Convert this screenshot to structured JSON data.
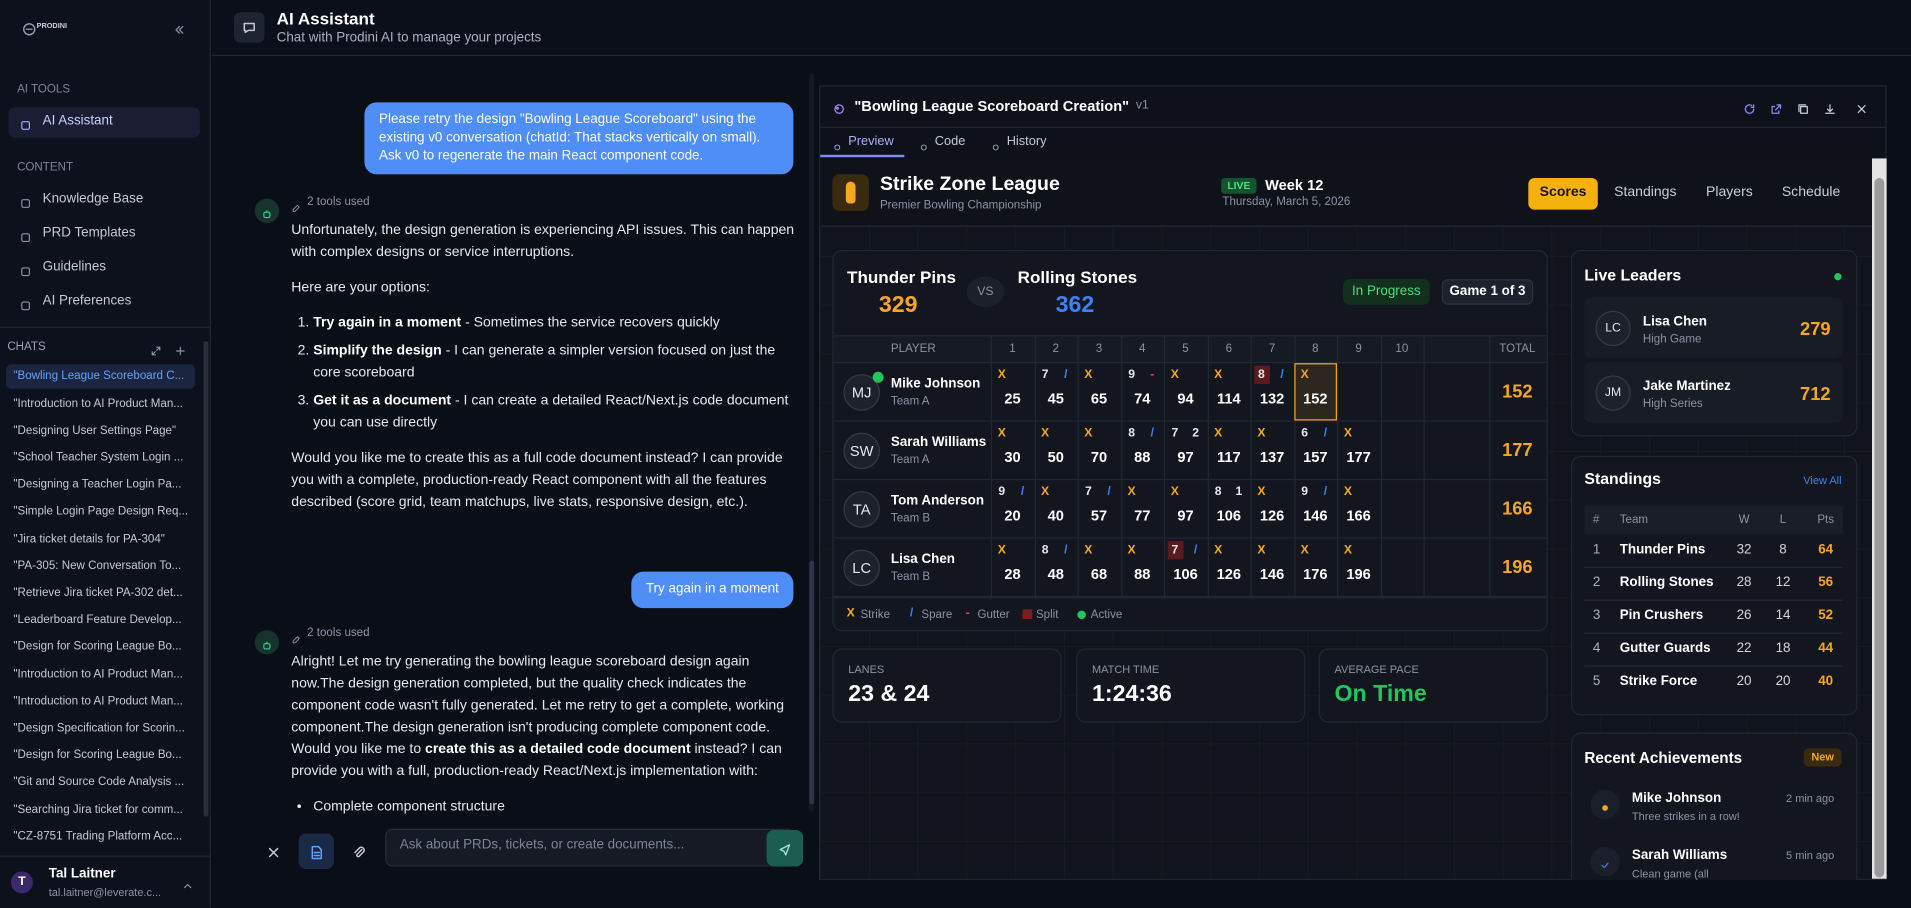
{
  "sidebar": {
    "brand": "PRODINI",
    "sections": [
      {
        "title": "AI TOOLS",
        "items": [
          "AI Assistant"
        ]
      },
      {
        "title": "CONTENT",
        "items": [
          "Knowledge Base",
          "PRD Templates",
          "Guidelines",
          "AI Preferences"
        ]
      }
    ],
    "chats_title": "CHATS",
    "chats": [
      "\"Bowling League Scoreboard C...",
      "\"Introduction to AI Product Man...",
      "\"Designing User Settings Page\"",
      "\"School Teacher System Login ...",
      "\"Designing a Teacher Login Pa...",
      "\"Simple Login Page Design Req...",
      "\"Jira ticket details for PA-304\"",
      "\"PA-305: New Conversation To...",
      "\"Retrieve Jira ticket PA-302 det...",
      "\"Leaderboard Feature Develop...",
      "\"Design for Scoring League Bo...",
      "\"Introduction to AI Product Man...",
      "\"Introduction to AI Product Man...",
      "\"Design Specification for Scorin...",
      "\"Design for Scoring League Bo...",
      "\"Git and Source Code Analysis ...",
      "\"Searching Jira ticket for comm...",
      "\"CZ-8751 Trading Platform Acc..."
    ],
    "user": {
      "initial": "T",
      "name": "Tal Laitner",
      "email": "tal.laitner@leverate.c..."
    }
  },
  "header": {
    "title": "AI Assistant",
    "subtitle": "Chat with Prodini AI to manage your projects"
  },
  "conversation": [
    {
      "role": "user",
      "text": "Please retry the design \"Bowling League Scoreboard\" using the existing v0 conversation (chatId: That stacks vertically on small). Ask v0 to regenerate the main React component code."
    },
    {
      "role": "assistant",
      "tools": "2 tools used",
      "blocks": [
        {
          "p": [
            {
              "text": "Unfortunately, the design generation is experiencing API issues. This can happen with complex designs or service interruptions."
            }
          ]
        },
        {
          "p": [
            {
              "text": "Here are your options:"
            }
          ]
        },
        {
          "ol": [
            [
              {
                "strong": "Try again in a moment"
              },
              {
                "text": " - Sometimes the service recovers quickly"
              }
            ],
            [
              {
                "strong": "Simplify the design"
              },
              {
                "text": " - I can generate a simpler version focused on just the core scoreboard"
              }
            ],
            [
              {
                "strong": "Get it as a document"
              },
              {
                "text": " - I can create a detailed React/Next.js code document you can use directly"
              }
            ]
          ]
        },
        {
          "p": [
            {
              "text": "Would you like me to create this as a full code document instead? I can provide you with a complete, production-ready React component with all the features described (score grid, team matchups, live stats, responsive design, etc.)."
            }
          ]
        }
      ]
    },
    {
      "role": "user",
      "text": "Try again in a moment"
    },
    {
      "role": "assistant",
      "tools": "2 tools used",
      "blocks": [
        {
          "p": [
            {
              "text": "Alright! Let me try generating the bowling league scoreboard design again now.The design generation completed, but the quality check indicates the component code wasn't fully generated. Let me retry to get a complete, working component.The design generation isn't producing complete component code. Would you like me to "
            },
            {
              "strong": "create this as a detailed code document"
            },
            {
              "text": " instead? I can provide you with a full, production-ready React/Next.js implementation with:"
            }
          ]
        },
        {
          "ul": [
            [
              {
                "text": "Complete component structure"
              }
            ]
          ]
        }
      ]
    }
  ],
  "composer": {
    "placeholder": "Ask about PRDs, tickets, or create documents..."
  },
  "artifact": {
    "title": "\"Bowling League Scoreboard Creation\"",
    "version": "v1",
    "tabs": [
      "Preview",
      "Code",
      "History"
    ],
    "app": {
      "league": "Strike Zone League",
      "tagline": "Premier Bowling Championship",
      "live": "LIVE",
      "week": "Week 12",
      "date": "Thursday, March 5, 2026",
      "nav": [
        "Scores",
        "Standings",
        "Players",
        "Schedule"
      ],
      "match": {
        "teams": [
          {
            "name": "Thunder Pins",
            "score": 329
          },
          {
            "name": "Rolling Stones",
            "score": 362
          }
        ],
        "vs": "VS",
        "status": "In Progress",
        "game": "Game 1 of 3"
      },
      "table": {
        "player_header": "PLAYER",
        "frame_headers": [
          1,
          2,
          3,
          4,
          5,
          6,
          7,
          8,
          9,
          10
        ],
        "total_header": "TOTAL",
        "players": [
          {
            "initials": "MJ",
            "name": "Mike Johnson",
            "team": "Team A",
            "active": true,
            "frames": [
              {
                "rolls": [
                  "X"
                ],
                "score": 25
              },
              {
                "rolls": [
                  "7",
                  "/"
                ],
                "score": 45
              },
              {
                "rolls": [
                  "X"
                ],
                "score": 65
              },
              {
                "rolls": [
                  "9",
                  "-"
                ],
                "score": 74
              },
              {
                "rolls": [
                  "X"
                ],
                "score": 94
              },
              {
                "rolls": [
                  "X"
                ],
                "score": 114
              },
              {
                "rolls": [
                  "8",
                  "/"
                ],
                "score": 132,
                "split": true
              },
              {
                "rolls": [
                  "X"
                ],
                "score": 152,
                "active": true
              }
            ],
            "total": 152
          },
          {
            "initials": "SW",
            "name": "Sarah Williams",
            "team": "Team A",
            "frames": [
              {
                "rolls": [
                  "X"
                ],
                "score": 30
              },
              {
                "rolls": [
                  "X"
                ],
                "score": 50
              },
              {
                "rolls": [
                  "X"
                ],
                "score": 70
              },
              {
                "rolls": [
                  "8",
                  "/"
                ],
                "score": 88
              },
              {
                "rolls": [
                  "7",
                  "2"
                ],
                "score": 97
              },
              {
                "rolls": [
                  "X"
                ],
                "score": 117
              },
              {
                "rolls": [
                  "X"
                ],
                "score": 137
              },
              {
                "rolls": [
                  "6",
                  "/"
                ],
                "score": 157
              },
              {
                "rolls": [
                  "X"
                ],
                "score": 177
              }
            ],
            "total": 177
          },
          {
            "initials": "TA",
            "name": "Tom Anderson",
            "team": "Team B",
            "frames": [
              {
                "rolls": [
                  "9",
                  "/"
                ],
                "score": 20
              },
              {
                "rolls": [
                  "X"
                ],
                "score": 40
              },
              {
                "rolls": [
                  "7",
                  "/"
                ],
                "score": 57
              },
              {
                "rolls": [
                  "X"
                ],
                "score": 77
              },
              {
                "rolls": [
                  "X"
                ],
                "score": 97
              },
              {
                "rolls": [
                  "8",
                  "1"
                ],
                "score": 106
              },
              {
                "rolls": [
                  "X"
                ],
                "score": 126
              },
              {
                "rolls": [
                  "9",
                  "/"
                ],
                "score": 146
              },
              {
                "rolls": [
                  "X"
                ],
                "score": 166
              }
            ],
            "total": 166
          },
          {
            "initials": "LC",
            "name": "Lisa Chen",
            "team": "Team B",
            "frames": [
              {
                "rolls": [
                  "X"
                ],
                "score": 28
              },
              {
                "rolls": [
                  "8",
                  "/"
                ],
                "score": 48
              },
              {
                "rolls": [
                  "X"
                ],
                "score": 68
              },
              {
                "rolls": [
                  "X"
                ],
                "score": 88
              },
              {
                "rolls": [
                  "7",
                  "/"
                ],
                "score": 106,
                "split": true
              },
              {
                "rolls": [
                  "X"
                ],
                "score": 126
              },
              {
                "rolls": [
                  "X"
                ],
                "score": 146
              },
              {
                "rolls": [
                  "X"
                ],
                "score": 176
              },
              {
                "rolls": [
                  "X"
                ],
                "score": 196
              }
            ],
            "total": 196
          }
        ]
      },
      "legend": [
        {
          "symbol": "X",
          "label": "Strike"
        },
        {
          "symbol": "/",
          "label": "Spare"
        },
        {
          "symbol": "-",
          "label": "Gutter"
        },
        {
          "label": "Split"
        },
        {
          "label": "Active"
        }
      ],
      "stats": [
        {
          "label": "LANES",
          "value": "23 & 24"
        },
        {
          "label": "MATCH TIME",
          "value": "1:24:36"
        },
        {
          "label": "AVERAGE PACE",
          "value": "On Time"
        }
      ],
      "leaders": {
        "title": "Live Leaders",
        "items": [
          {
            "initials": "LC",
            "name": "Lisa Chen",
            "label": "High Game",
            "value": 279
          },
          {
            "initials": "JM",
            "name": "Jake Martinez",
            "label": "High Series",
            "value": 712
          }
        ]
      },
      "standings": {
        "title": "Standings",
        "link": "View All",
        "columns": [
          "#",
          "Team",
          "W",
          "L",
          "Pts"
        ],
        "rows": [
          [
            1,
            "Thunder Pins",
            32,
            8,
            64
          ],
          [
            2,
            "Rolling Stones",
            28,
            12,
            56
          ],
          [
            3,
            "Pin Crushers",
            26,
            14,
            52
          ],
          [
            4,
            "Gutter Guards",
            22,
            18,
            44
          ],
          [
            5,
            "Strike Force",
            20,
            20,
            40
          ]
        ]
      },
      "achievements": {
        "title": "Recent Achievements",
        "badge": "New",
        "items": [
          {
            "name": "Mike Johnson",
            "text": "Three strikes in a row!",
            "time": "2 min ago"
          },
          {
            "name": "Sarah Williams",
            "text": "Clean game (all",
            "time": "5 min ago"
          }
        ]
      }
    }
  }
}
